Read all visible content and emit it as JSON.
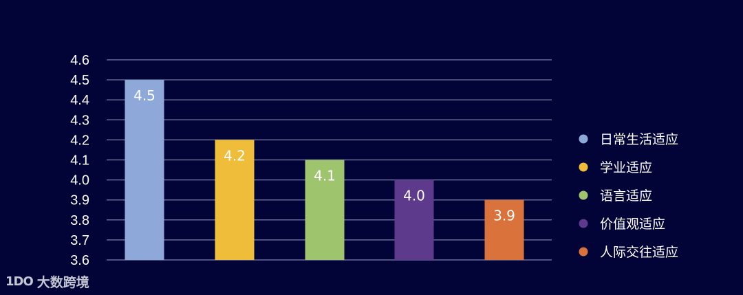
{
  "chart_data": {
    "type": "bar",
    "categories": [
      "日常生活适应",
      "学业适应",
      "语言适应",
      "价值观适应",
      "人际交往适应"
    ],
    "values": [
      4.5,
      4.2,
      4.1,
      4.0,
      3.9
    ],
    "data_labels": [
      "4.5",
      "4.2",
      "4.1",
      "4.0",
      "3.9"
    ],
    "colors": [
      "#8ea9d9",
      "#f0bd3a",
      "#9ec46e",
      "#5e3a8c",
      "#d9733b"
    ],
    "ylim": [
      3.6,
      4.6
    ],
    "yticks": [
      4.6,
      4.5,
      4.4,
      4.3,
      4.2,
      4.1,
      4.0,
      3.9,
      3.8,
      3.7,
      3.6
    ],
    "ytick_labels": [
      "4.6",
      "4.5",
      "4.4",
      "4.3",
      "4.2",
      "4.1",
      "4.0",
      "3.9",
      "3.8",
      "3.7",
      "3.6"
    ],
    "grid": true,
    "legend_position": "right",
    "title": "",
    "xlabel": "",
    "ylabel": ""
  },
  "colors": {
    "background": "#020437",
    "gridline": "#8a8fb5",
    "axis_text": "#ffffff",
    "label_text": "#ffffff"
  },
  "watermark": {
    "logo": "1DO",
    "text": "大数跨境"
  }
}
